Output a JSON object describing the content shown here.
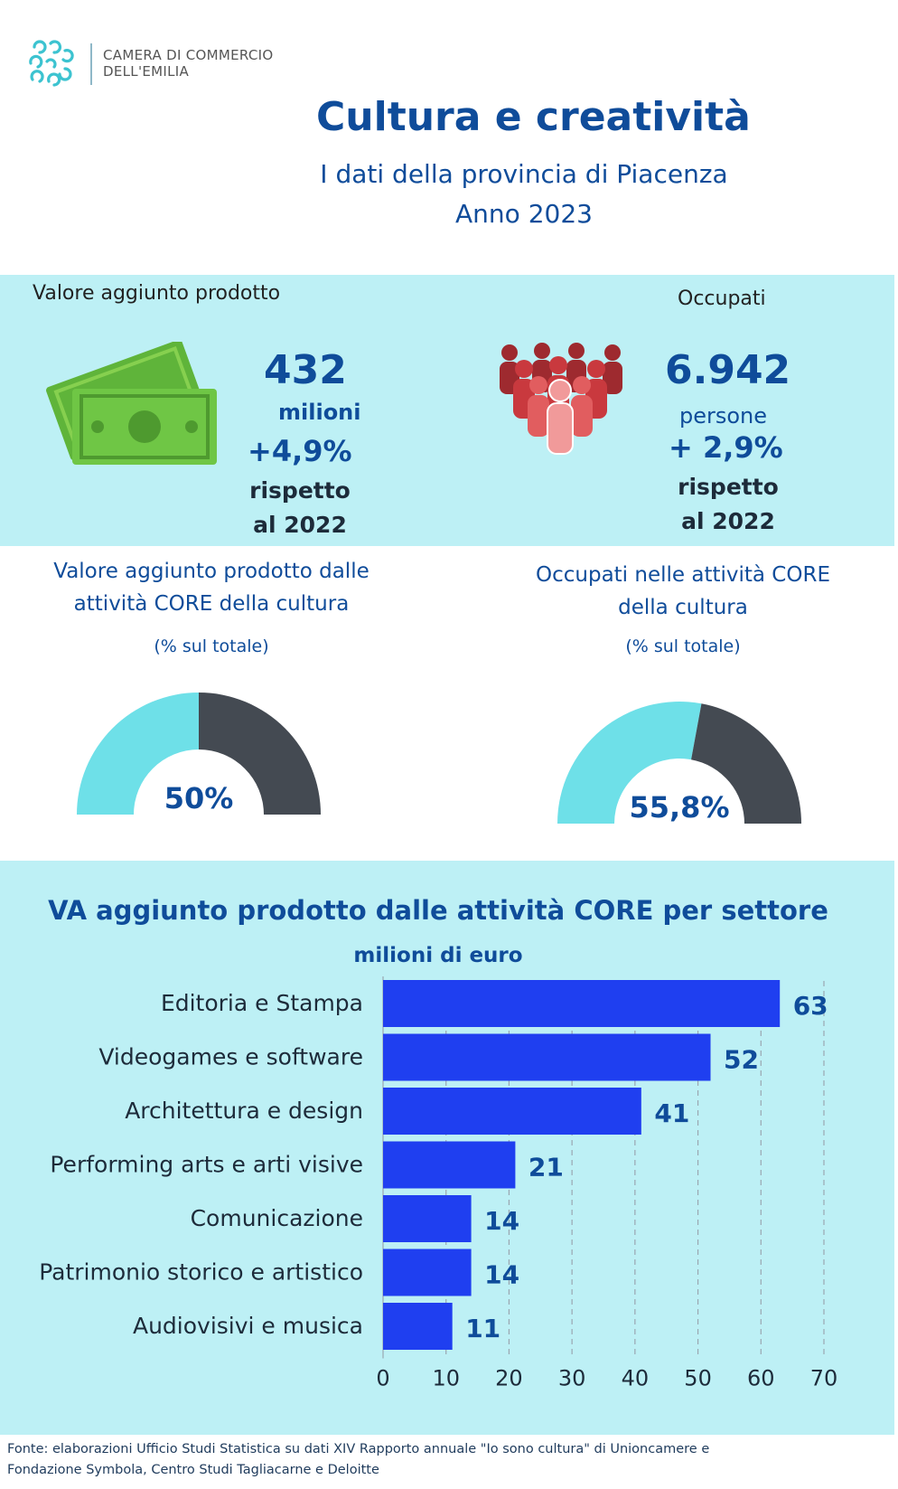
{
  "header": {
    "org_line1": "CAMERA DI COMMERCIO",
    "org_line2": "DELL'EMILIA",
    "title": "Cultura e creatività",
    "subtitle": "I dati della provincia di Piacenza",
    "year": "Anno 2023"
  },
  "kpi_value": {
    "label": "Valore aggiunto prodotto",
    "value": "432",
    "unit": "milioni",
    "change": "+4,9%",
    "note_line1": "rispetto",
    "note_line2": "al 2022",
    "icon": "banknotes-icon"
  },
  "kpi_jobs": {
    "label": "Occupati",
    "value": "6.942",
    "unit": "persone",
    "change": "+ 2,9%",
    "note_line1": "rispetto",
    "note_line2": "al 2022",
    "icon": "people-group-icon"
  },
  "gauges": [
    {
      "title_line1": "Valore aggiunto prodotto dalle",
      "title_line2": "attività CORE della cultura",
      "subtitle": "(% sul totale)",
      "value_label": "50%",
      "fraction": 0.5
    },
    {
      "title_line1": "Occupati nelle attività CORE",
      "title_line2": "della cultura",
      "subtitle": "(% sul totale)",
      "value_label": "55,8%",
      "fraction": 0.558
    }
  ],
  "colors": {
    "band": "#bdf0f5",
    "gauge_fill": "#6ee0e8",
    "gauge_rest": "#444a52",
    "bar": "#1f3ff0",
    "accent": "#0f4c9a"
  },
  "chart_data": {
    "type": "bar",
    "orientation": "horizontal",
    "title": "VA aggiunto prodotto dalle attività CORE per settore",
    "subtitle": "milioni di euro",
    "categories": [
      "Editoria e Stampa",
      "Videogames e software",
      "Architettura e design",
      "Performing arts e arti visive",
      "Comunicazione",
      "Patrimonio storico e artistico",
      "Audiovisivi e musica"
    ],
    "values": [
      63,
      52,
      41,
      21,
      14,
      14,
      11
    ],
    "xlim": [
      0,
      70
    ],
    "xticks": [
      "0",
      "10",
      "20",
      "30",
      "40",
      "50",
      "60",
      "70"
    ],
    "grid": "vertical dashed"
  },
  "footer": {
    "source_line1": "Fonte: elaborazioni Ufficio Studi Statistica su dati XIV Rapporto annuale \"Io sono cultura\" di Unioncamere e",
    "source_line2": "Fondazione Symbola, Centro Studi Tagliacarne e Deloitte"
  }
}
